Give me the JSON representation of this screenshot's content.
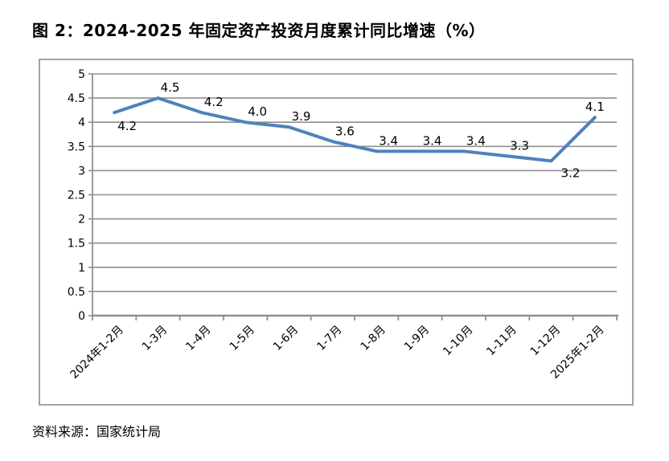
{
  "page": {
    "title": "图 2：2024-2025 年固定资产投资月度累计同比增速（%）",
    "source": "资料来源：国家统计局"
  },
  "colors": {
    "line": "#4F81BD",
    "grid": "#8F8F8F",
    "axis": "#8F8F8F",
    "frame_border": "#A3A3A3",
    "text": "#000000"
  },
  "chart_data": {
    "type": "line",
    "title": "图 2：2024-2025 年固定资产投资月度累计同比增速（%）",
    "xlabel": "",
    "ylabel": "",
    "categories": [
      "2024年1-2月",
      "1-3月",
      "1-4月",
      "1-5月",
      "1-6月",
      "1-7月",
      "1-8月",
      "1-9月",
      "1-10月",
      "1-11月",
      "1-12月",
      "2025年1-2月"
    ],
    "values": [
      4.2,
      4.5,
      4.2,
      4.0,
      3.9,
      3.6,
      3.4,
      3.4,
      3.4,
      3.3,
      3.2,
      4.1
    ],
    "point_labels": [
      "4.2",
      "4.5",
      "4.2",
      "4.0",
      "3.9",
      "3.6",
      "3.4",
      "3.4",
      "3.4",
      "3.3",
      "3.2",
      "4.1"
    ],
    "label_positions": [
      "below",
      "above",
      "above",
      "above",
      "above",
      "above",
      "above",
      "above",
      "above",
      "above",
      "below-right",
      "above-center"
    ],
    "ylim": [
      0,
      5
    ],
    "ytick_step": 0.5,
    "yticks": [
      "5",
      "4.5",
      "4",
      "3.5",
      "3",
      "2.5",
      "2",
      "1.5",
      "1",
      "0.5",
      "0"
    ],
    "grid": true,
    "legend": "none",
    "x_label_rotation_deg": 45,
    "source": "资料来源：国家统计局"
  }
}
